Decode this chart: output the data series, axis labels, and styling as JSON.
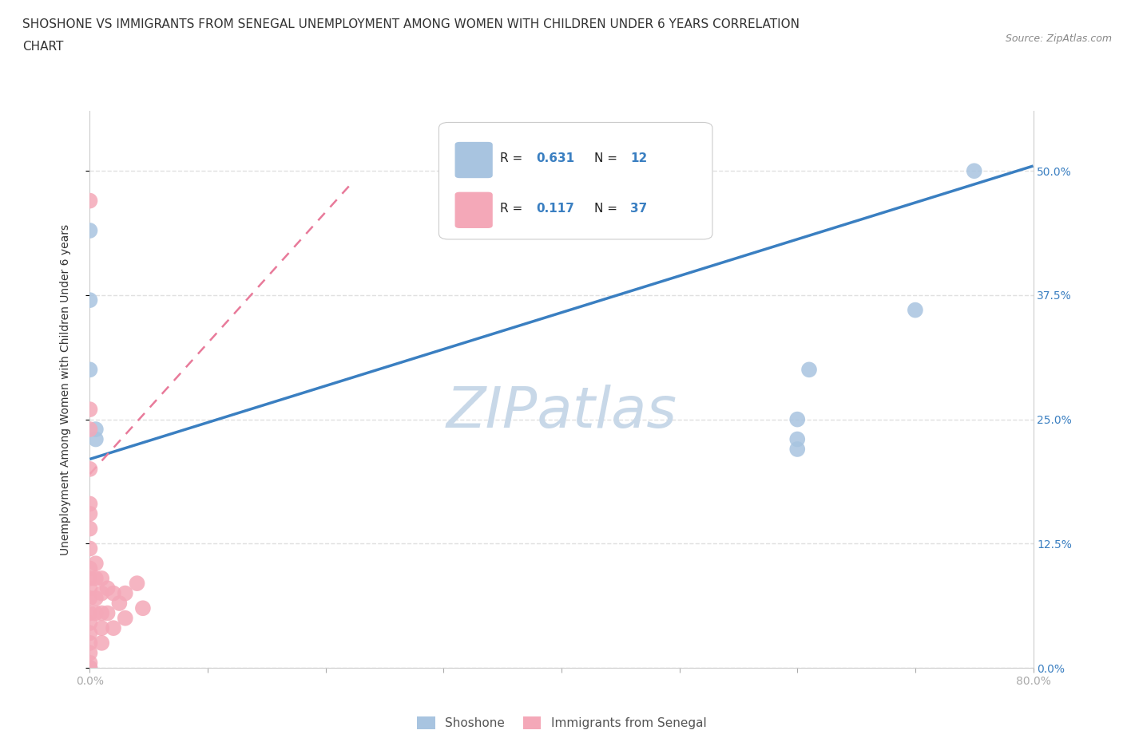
{
  "title_line1": "SHOSHONE VS IMMIGRANTS FROM SENEGAL UNEMPLOYMENT AMONG WOMEN WITH CHILDREN UNDER 6 YEARS CORRELATION",
  "title_line2": "CHART",
  "source": "Source: ZipAtlas.com",
  "ylabel": "Unemployment Among Women with Children Under 6 years",
  "xlim": [
    0,
    0.8
  ],
  "ylim": [
    0,
    0.56
  ],
  "xticks": [
    0.0,
    0.1,
    0.2,
    0.3,
    0.4,
    0.5,
    0.6,
    0.7,
    0.8
  ],
  "ytick_positions": [
    0.0,
    0.125,
    0.25,
    0.375,
    0.5
  ],
  "ytick_labels": [
    "0.0%",
    "12.5%",
    "25.0%",
    "37.5%",
    "50.0%"
  ],
  "watermark": "ZIPatlas",
  "shoshone_color": "#a8c4e0",
  "senegal_color": "#f4a8b8",
  "shoshone_R": 0.631,
  "shoshone_N": 12,
  "senegal_R": 0.117,
  "senegal_N": 37,
  "shoshone_line_color": "#3a7fc1",
  "senegal_line_color": "#e87a9a",
  "shoshone_line_x": [
    0.0,
    0.8
  ],
  "shoshone_line_y": [
    0.21,
    0.505
  ],
  "senegal_line_x": [
    0.0,
    0.22
  ],
  "senegal_line_y": [
    0.195,
    0.485
  ],
  "shoshone_points_x": [
    0.0,
    0.0,
    0.0,
    0.0,
    0.005,
    0.005,
    0.6,
    0.6,
    0.6,
    0.61,
    0.7,
    0.75
  ],
  "shoshone_points_y": [
    0.44,
    0.37,
    0.3,
    0.0,
    0.24,
    0.23,
    0.25,
    0.23,
    0.22,
    0.3,
    0.36,
    0.5
  ],
  "senegal_points_x": [
    0.0,
    0.0,
    0.0,
    0.0,
    0.0,
    0.0,
    0.0,
    0.0,
    0.0,
    0.0,
    0.0,
    0.0,
    0.0,
    0.0,
    0.0,
    0.0,
    0.0,
    0.0,
    0.0,
    0.005,
    0.005,
    0.005,
    0.005,
    0.01,
    0.01,
    0.01,
    0.01,
    0.01,
    0.015,
    0.015,
    0.02,
    0.02,
    0.025,
    0.03,
    0.03,
    0.04,
    0.045
  ],
  "senegal_points_y": [
    0.47,
    0.26,
    0.24,
    0.2,
    0.165,
    0.155,
    0.14,
    0.12,
    0.1,
    0.09,
    0.08,
    0.07,
    0.055,
    0.045,
    0.035,
    0.025,
    0.015,
    0.005,
    0.0,
    0.105,
    0.09,
    0.07,
    0.055,
    0.09,
    0.075,
    0.055,
    0.04,
    0.025,
    0.08,
    0.055,
    0.075,
    0.04,
    0.065,
    0.075,
    0.05,
    0.085,
    0.06
  ],
  "legend_label_blue": "Shoshone",
  "legend_label_pink": "Immigrants from Senegal",
  "title_fontsize": 11,
  "axis_label_fontsize": 10,
  "tick_fontsize": 10,
  "legend_fontsize": 11,
  "watermark_color": "#c8d8e8",
  "watermark_fontsize": 52,
  "grid_color": "#e0e0e0",
  "background_color": "#ffffff",
  "right_ytick_color": "#3a7fc1"
}
